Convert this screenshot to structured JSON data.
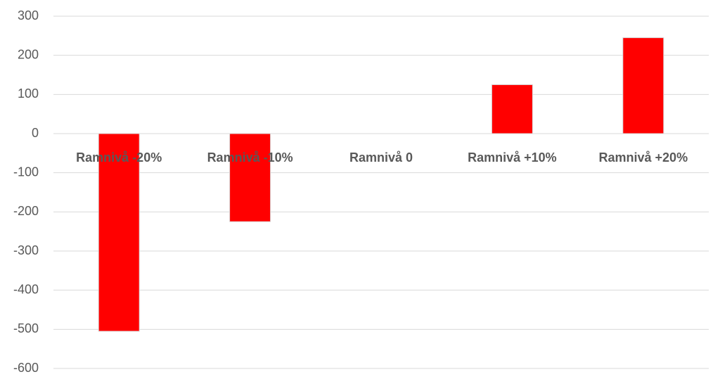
{
  "chart_data": {
    "type": "bar",
    "categories": [
      "Ramnivå -20%",
      "Ramnivå -10%",
      "Ramnivå 0",
      "Ramnivå +10%",
      "Ramnivå +20%"
    ],
    "values": [
      -505,
      -225,
      0,
      125,
      245
    ],
    "color": "#ff0000",
    "ylim": [
      -600,
      300
    ],
    "yticks": [
      -600,
      -500,
      -400,
      -300,
      -200,
      -100,
      0,
      100,
      200,
      300
    ],
    "grid": true
  }
}
